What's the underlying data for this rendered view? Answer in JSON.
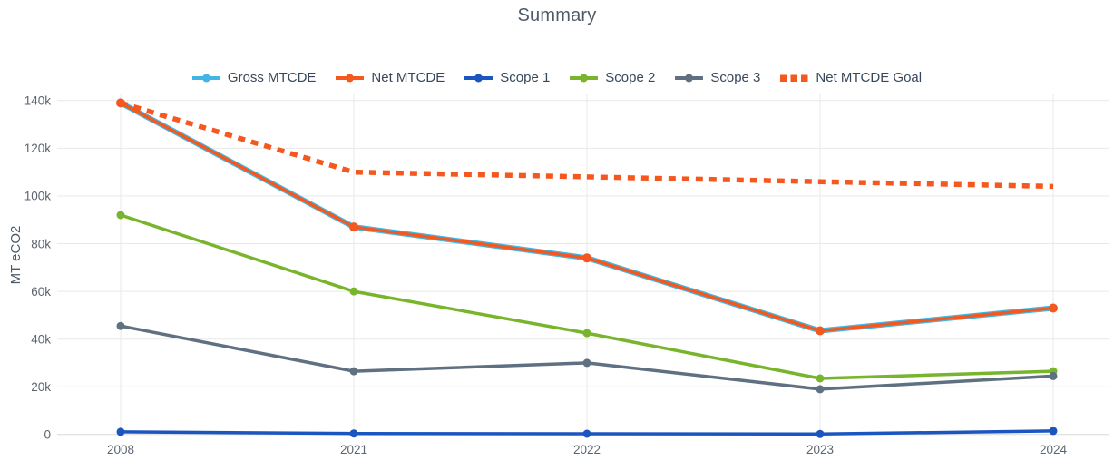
{
  "chart_data": {
    "type": "line",
    "title": "Summary",
    "xlabel": "",
    "ylabel": "MT eCO2",
    "categories": [
      "2008",
      "2021",
      "2022",
      "2023",
      "2024"
    ],
    "ylim": [
      0,
      148000
    ],
    "yticks": [
      0,
      20000,
      40000,
      60000,
      80000,
      100000,
      120000,
      140000
    ],
    "ytick_labels": [
      "0",
      "20k",
      "40k",
      "60k",
      "80k",
      "100k",
      "120k",
      "140k"
    ],
    "grid": true,
    "legend_position": "top",
    "series": [
      {
        "name": "Gross MTCDE",
        "color": "#41b6e6",
        "style": "solid",
        "marker": "circle",
        "values": [
          139000,
          87000,
          74000,
          43500,
          53000
        ]
      },
      {
        "name": "Net MTCDE",
        "color": "#f4581e",
        "style": "solid",
        "marker": "circle",
        "values": [
          139000,
          87000,
          74000,
          43500,
          53000
        ]
      },
      {
        "name": "Scope 1",
        "color": "#1b55c0",
        "style": "solid",
        "marker": "circle",
        "values": [
          1100,
          400,
          300,
          200,
          1500
        ]
      },
      {
        "name": "Scope 2",
        "color": "#78b42c",
        "style": "solid",
        "marker": "circle",
        "values": [
          92000,
          60000,
          42500,
          23500,
          26500
        ]
      },
      {
        "name": "Scope 3",
        "color": "#5f7081",
        "style": "solid",
        "marker": "circle",
        "values": [
          45500,
          26500,
          30000,
          19000,
          24500
        ]
      },
      {
        "name": "Net MTCDE Goal",
        "color": "#f4581e",
        "style": "dotted",
        "marker": "square",
        "values": [
          139000,
          110000,
          108000,
          106000,
          104000
        ]
      }
    ],
    "colors": {
      "grid": "#e9e9e9",
      "axis_line": "#d8d8d8",
      "tick_text": "#5b6570",
      "title_text": "#4d5a68",
      "legend_text": "#36485a"
    }
  }
}
